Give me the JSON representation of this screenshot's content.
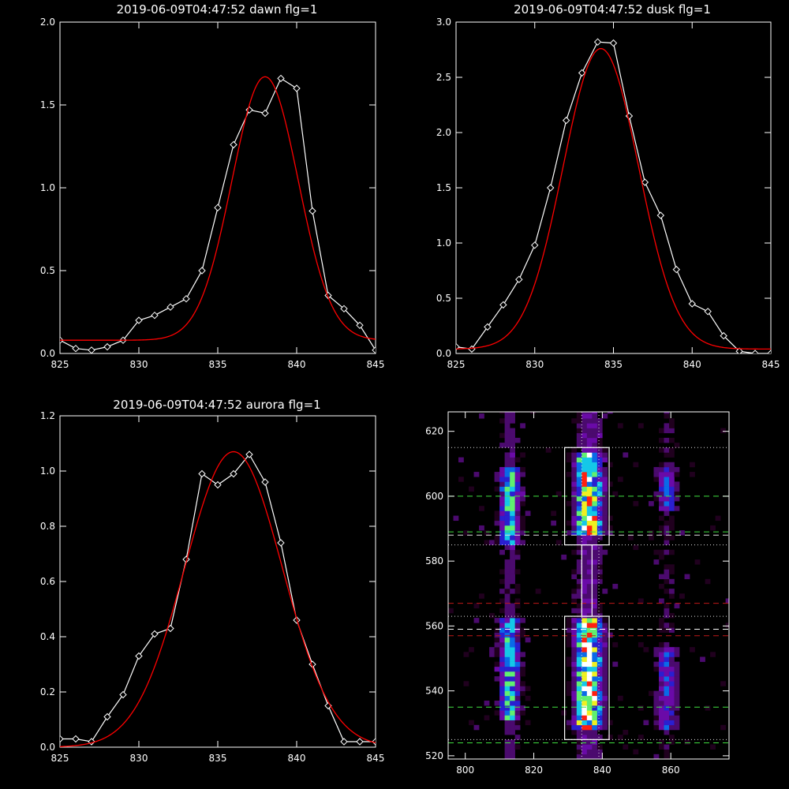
{
  "chart_data": [
    {
      "type": "line",
      "title": "2019-06-09T04:47:52 dawn flg=1",
      "xlim": [
        825,
        845
      ],
      "ylim": [
        0,
        2.0
      ],
      "xticks": [
        825,
        830,
        835,
        840,
        845
      ],
      "yticks": [
        0.0,
        0.5,
        1.0,
        1.5,
        2.0
      ],
      "ytick_labels": [
        "0.0",
        "0.5",
        "1.0",
        "1.5",
        "2.0"
      ],
      "series": [
        {
          "color": "#ffffff",
          "marker": "diamond",
          "x": [
            825,
            826,
            827,
            828,
            829,
            830,
            831,
            832,
            833,
            834,
            835,
            836,
            837,
            838,
            839,
            840,
            841,
            842,
            843,
            844,
            845
          ],
          "y": [
            0.08,
            0.03,
            0.02,
            0.04,
            0.08,
            0.2,
            0.23,
            0.28,
            0.33,
            0.5,
            0.88,
            1.26,
            1.47,
            1.45,
            1.66,
            1.6,
            0.86,
            0.35,
            0.27,
            0.17,
            0.02
          ]
        },
        {
          "color": "#ff0000",
          "fit": {
            "amp": 1.59,
            "mu": 838.0,
            "sigma": 2.1,
            "base": 0.08
          }
        }
      ]
    },
    {
      "type": "line",
      "title": "2019-06-09T04:47:52 dusk flg=1",
      "xlim": [
        825,
        845
      ],
      "ylim": [
        0,
        3.0
      ],
      "xticks": [
        825,
        830,
        835,
        840,
        845
      ],
      "yticks": [
        0.0,
        0.5,
        1.0,
        1.5,
        2.0,
        2.5,
        3.0
      ],
      "ytick_labels": [
        "0.0",
        "0.5",
        "1.0",
        "1.5",
        "2.0",
        "2.5",
        "3.0"
      ],
      "series": [
        {
          "color": "#ffffff",
          "marker": "diamond",
          "x": [
            825,
            826,
            827,
            828,
            829,
            830,
            831,
            832,
            833,
            834,
            835,
            836,
            837,
            838,
            839,
            840,
            841,
            842,
            843,
            844,
            845
          ],
          "y": [
            0.06,
            0.04,
            0.24,
            0.44,
            0.67,
            0.98,
            1.5,
            2.11,
            2.54,
            2.82,
            2.81,
            2.15,
            1.55,
            1.25,
            0.76,
            0.45,
            0.38,
            0.16,
            0.02,
            0.0,
            0.0
          ]
        },
        {
          "color": "#ff0000",
          "fit": {
            "amp": 2.72,
            "mu": 834.2,
            "sigma": 2.4,
            "base": 0.04
          }
        }
      ]
    },
    {
      "type": "line",
      "title": "2019-06-09T04:47:52 aurora flg=1",
      "xlim": [
        825,
        845
      ],
      "ylim": [
        0,
        1.2
      ],
      "xticks": [
        825,
        830,
        835,
        840,
        845
      ],
      "yticks": [
        0.0,
        0.2,
        0.4,
        0.6,
        0.8,
        1.0,
        1.2
      ],
      "ytick_labels": [
        "0.0",
        "0.2",
        "0.4",
        "0.6",
        "0.8",
        "1.0",
        "1.2"
      ],
      "series": [
        {
          "color": "#ffffff",
          "marker": "diamond",
          "x": [
            825,
            826,
            827,
            828,
            829,
            830,
            831,
            832,
            833,
            834,
            835,
            836,
            837,
            838,
            839,
            840,
            841,
            842,
            843,
            844,
            845
          ],
          "y": [
            0.03,
            0.03,
            0.02,
            0.11,
            0.19,
            0.33,
            0.41,
            0.43,
            0.68,
            0.99,
            0.95,
            0.99,
            1.06,
            0.96,
            0.74,
            0.46,
            0.3,
            0.15,
            0.02,
            0.02,
            0.02
          ]
        },
        {
          "color": "#ff0000",
          "fit": {
            "amp": 1.07,
            "mu": 836.0,
            "sigma": 3.1,
            "base": 0.0
          }
        }
      ]
    },
    {
      "type": "heatmap",
      "title": "",
      "xlim": [
        795,
        877
      ],
      "ylim": [
        519,
        626
      ],
      "xticks": [
        800,
        820,
        840,
        860
      ],
      "yticks": [
        520,
        540,
        560,
        580,
        600,
        620
      ],
      "colormap": [
        "#20001e",
        "#4b0a6e",
        "#6a0aa8",
        "#2a1fd0",
        "#0a6ae8",
        "#14c8e8",
        "#60f070",
        "#f0f020",
        "#ff2010",
        "#ffffff"
      ],
      "columns": [
        {
          "x": 813,
          "width": 6,
          "y_ranges": [
            [
              530,
              562
            ],
            [
              585,
              608
            ]
          ],
          "peak": 0.62
        },
        {
          "x": 836,
          "width": 8,
          "y_ranges": [
            [
              528,
              562
            ],
            [
              588,
              612
            ]
          ],
          "peak": 0.95
        },
        {
          "x": 859,
          "width": 6,
          "y_ranges": [
            [
              528,
              552
            ],
            [
              595,
              608
            ]
          ],
          "peak": 0.4
        }
      ],
      "boxes": [
        {
          "x0": 829,
          "x1": 842,
          "y0": 585,
          "y1": 615
        },
        {
          "x0": 829,
          "x1": 842,
          "y0": 525,
          "y1": 563
        },
        {
          "x0": 834,
          "x1": 837,
          "y0": 563,
          "y1": 585
        }
      ],
      "hlines": [
        {
          "y": 615,
          "color": "#e0e0e0",
          "style": "dotted"
        },
        {
          "y": 600,
          "color": "#40e040",
          "style": "dashed"
        },
        {
          "y": 589,
          "color": "#40e040",
          "style": "dashed"
        },
        {
          "y": 588,
          "color": "#e0e0e0",
          "style": "dashed"
        },
        {
          "y": 585,
          "color": "#e0e0e0",
          "style": "dotted"
        },
        {
          "y": 567,
          "color": "#c01818",
          "style": "dashed"
        },
        {
          "y": 563,
          "color": "#e0e0e0",
          "style": "dotted"
        },
        {
          "y": 559,
          "color": "#ffffff",
          "style": "dashed"
        },
        {
          "y": 557,
          "color": "#c01818",
          "style": "dashed"
        },
        {
          "y": 535,
          "color": "#40e040",
          "style": "dashed"
        },
        {
          "y": 525,
          "color": "#e0e0e0",
          "style": "dotted"
        },
        {
          "y": 524,
          "color": "#40e040",
          "style": "dashed"
        }
      ],
      "vlines": [
        {
          "x": 834,
          "color": "#e0e0e0",
          "style": "dotted"
        },
        {
          "x": 839,
          "color": "#e0e0e0",
          "style": "dotted"
        }
      ]
    }
  ]
}
